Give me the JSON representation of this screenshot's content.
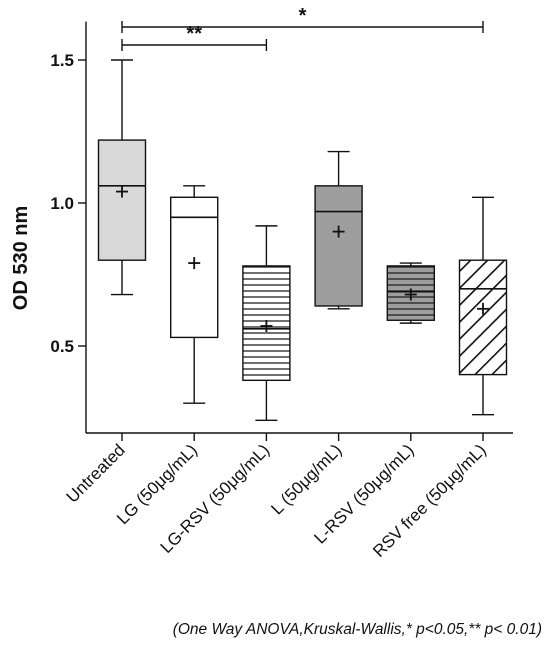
{
  "chart_data": {
    "type": "box",
    "title": "",
    "xlabel": "",
    "ylabel": "OD 530 nm",
    "ylim": [
      0.22,
      1.62
    ],
    "yticks": [
      "0.5",
      "1.0",
      "1.5"
    ],
    "ytick_values": [
      0.5,
      1.0,
      1.5
    ],
    "grid": false,
    "legend": "none",
    "categories": [
      "Untreated",
      "LG (50μg/mL)",
      "LG-RSV (50μg/mL)",
      "L (50μg/mL)",
      "L-RSV (50μg/mL)",
      "RSV free (50μg/mL)"
    ],
    "boxes": [
      {
        "category": "Untreated",
        "min": 0.68,
        "q1": 0.8,
        "median": 1.06,
        "q3": 1.22,
        "max": 1.5,
        "mean": 1.04,
        "fill": "#d9d9d9",
        "pattern": "solid"
      },
      {
        "category": "LG (50μg/mL)",
        "min": 0.3,
        "q1": 0.53,
        "median": 0.95,
        "q3": 1.02,
        "max": 1.06,
        "mean": 0.79,
        "fill": "#ffffff",
        "pattern": "solid"
      },
      {
        "category": "LG-RSV (50μg/mL)",
        "min": 0.24,
        "q1": 0.38,
        "median": 0.56,
        "q3": 0.78,
        "max": 0.92,
        "mean": 0.57,
        "fill": "#ffffff",
        "pattern": "horizontal-lines"
      },
      {
        "category": "L (50μg/mL)",
        "min": 0.63,
        "q1": 0.64,
        "median": 0.97,
        "q3": 1.06,
        "max": 1.18,
        "mean": 0.9,
        "fill": "#9e9e9e",
        "pattern": "solid"
      },
      {
        "category": "L-RSV (50μg/mL)",
        "min": 0.58,
        "q1": 0.59,
        "median": 0.69,
        "q3": 0.78,
        "max": 0.79,
        "mean": 0.68,
        "fill": "#9e9e9e",
        "pattern": "horizontal-lines"
      },
      {
        "category": "RSV free (50μg/mL)",
        "min": 0.26,
        "q1": 0.4,
        "median": 0.7,
        "q3": 0.8,
        "max": 1.02,
        "mean": 0.63,
        "fill": "#ffffff",
        "pattern": "diagonal-lines"
      }
    ],
    "significance": [
      {
        "from": "Untreated",
        "to": "LG-RSV (50μg/mL)",
        "label": "**",
        "level": 1
      },
      {
        "from": "Untreated",
        "to": "RSV free (50μg/mL)",
        "label": "*",
        "level": 2
      }
    ],
    "footnote": "(One Way ANOVA,Kruskal-Wallis,* p<0.05,** p< 0.01)"
  }
}
